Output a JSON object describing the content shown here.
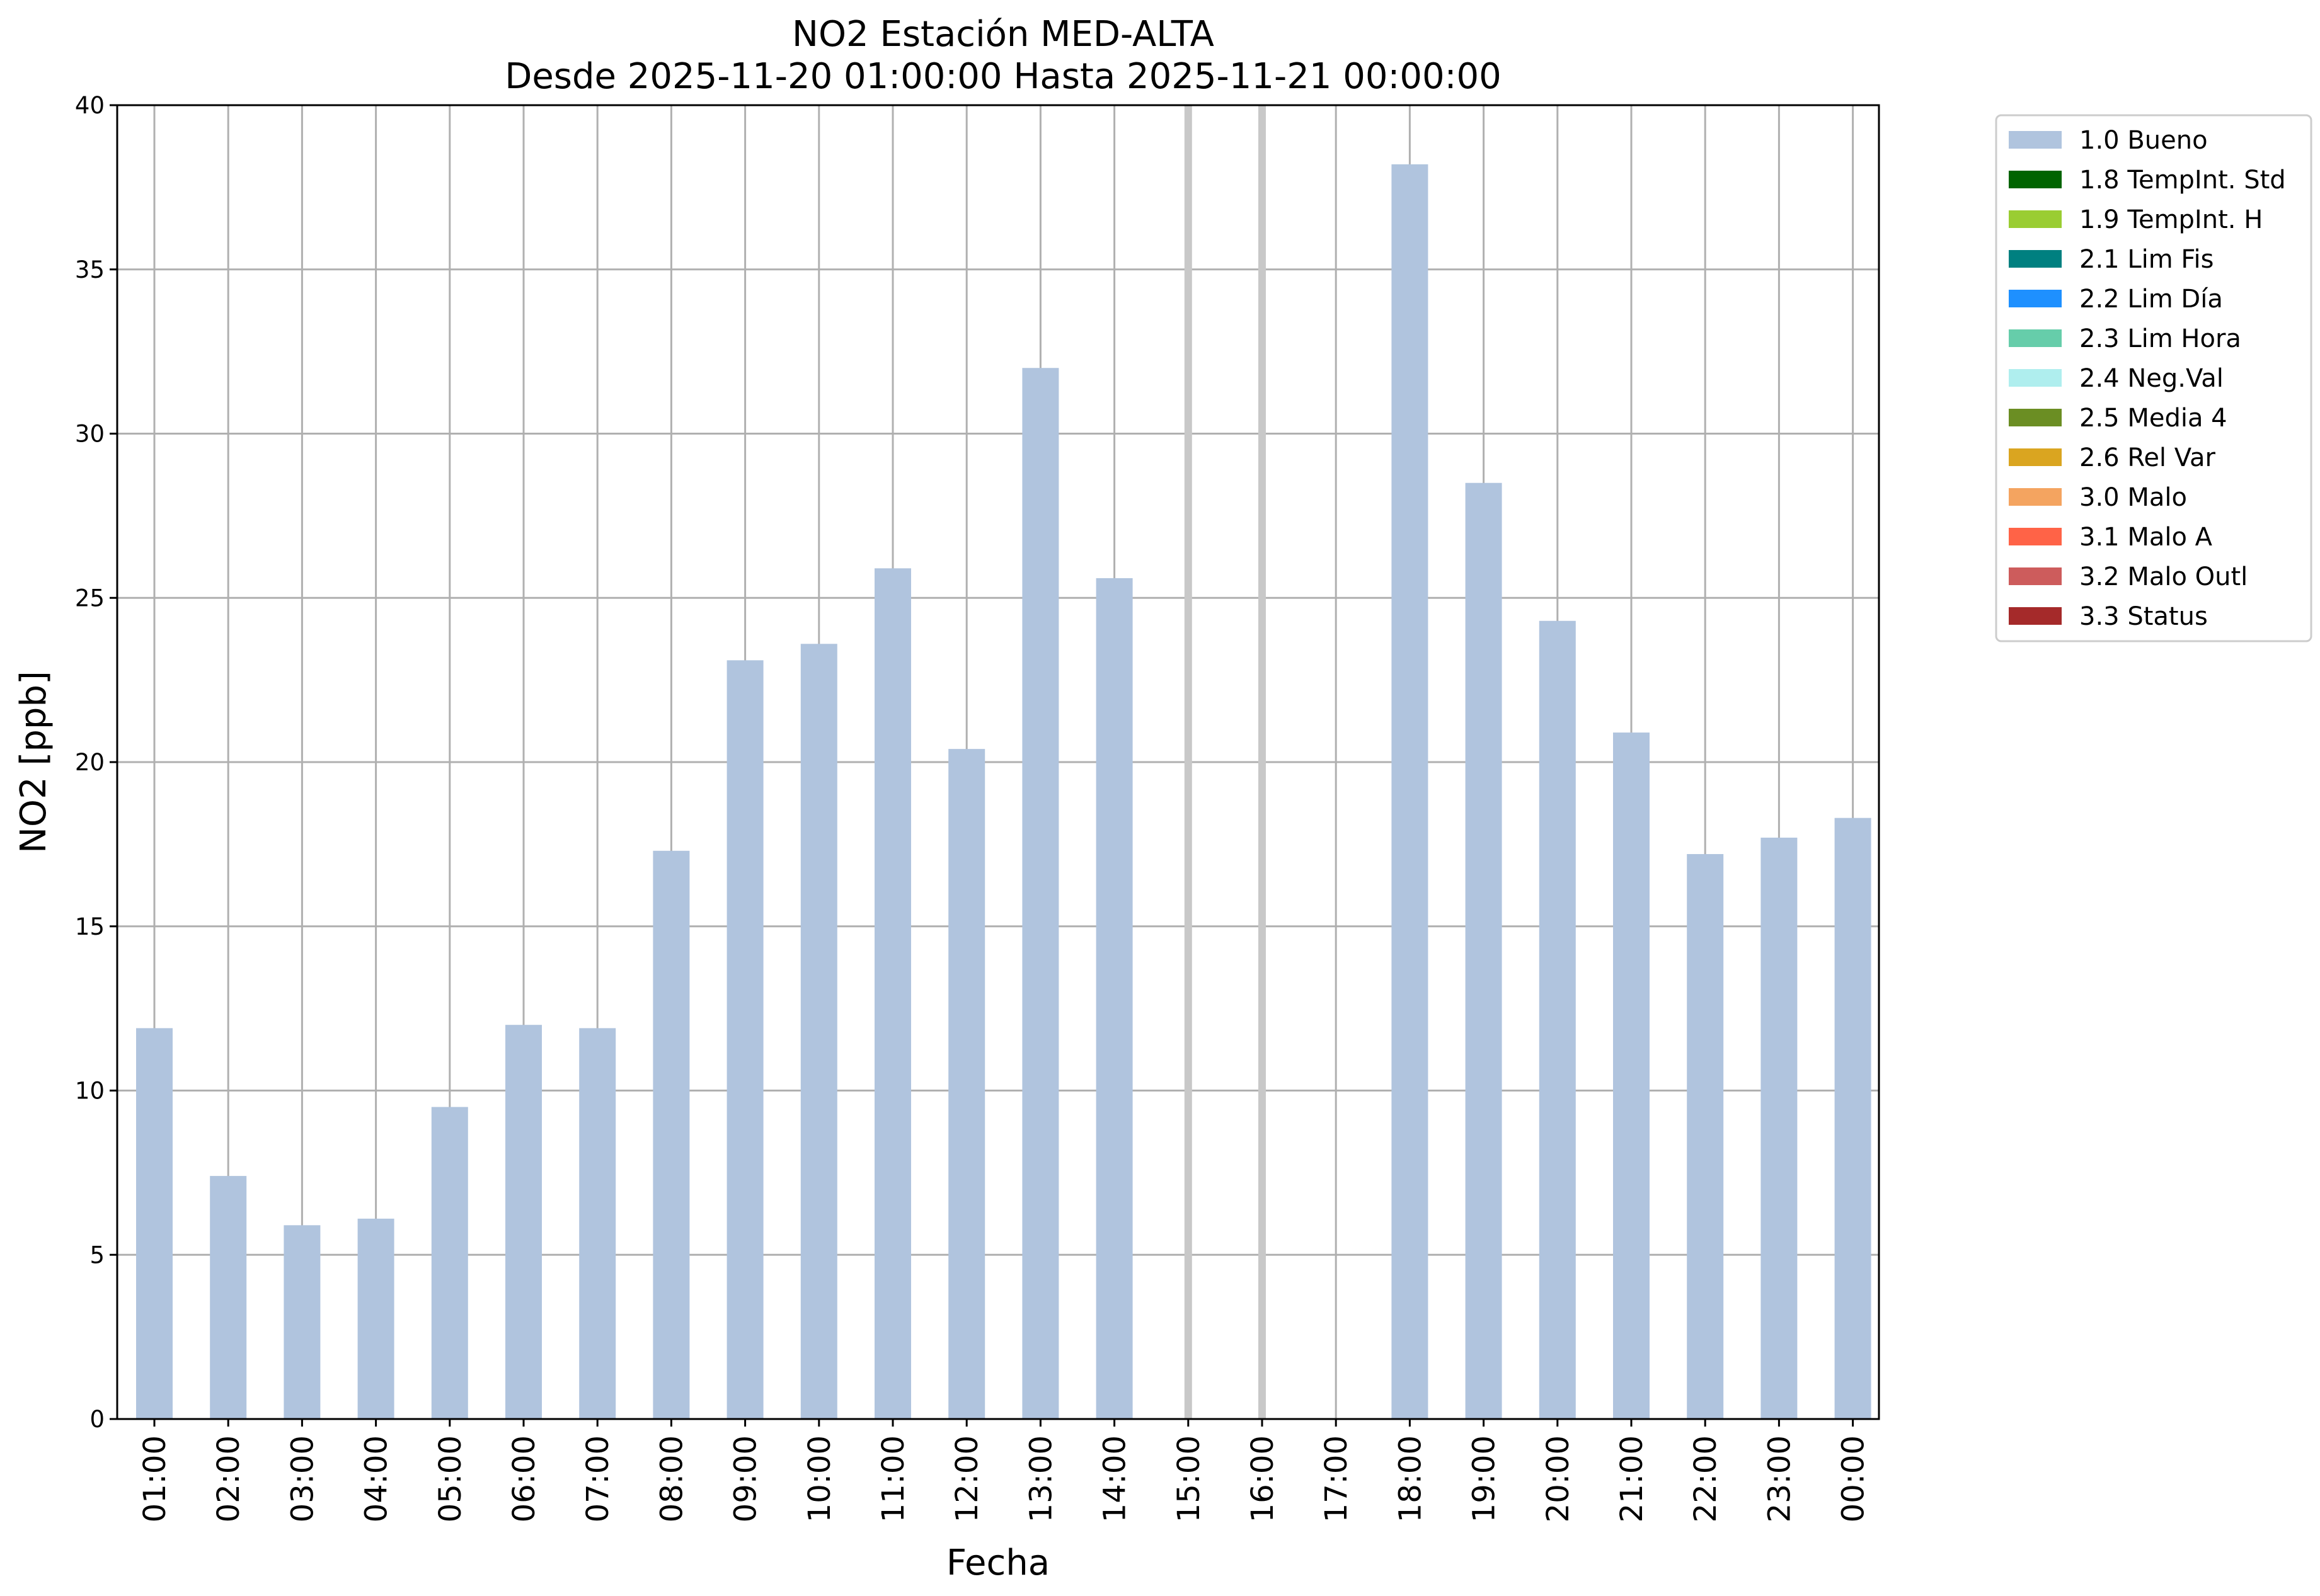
{
  "chart_data": {
    "type": "bar",
    "title": "NO2 Estación MED-ALTA",
    "subtitle": "Desde 2025-11-20 01:00:00 Hasta 2025-11-21 00:00:00",
    "xlabel": "Fecha",
    "ylabel": "NO2 [ppb]",
    "ylim": [
      0,
      40
    ],
    "yticks": [
      0,
      5,
      10,
      15,
      20,
      25,
      30,
      35,
      40
    ],
    "grid": true,
    "legend_position": "outside-top-right",
    "categories": [
      "01:00",
      "02:00",
      "03:00",
      "04:00",
      "05:00",
      "06:00",
      "07:00",
      "08:00",
      "09:00",
      "10:00",
      "11:00",
      "12:00",
      "13:00",
      "14:00",
      "15:00",
      "16:00",
      "17:00",
      "18:00",
      "19:00",
      "20:00",
      "21:00",
      "22:00",
      "23:00",
      "00:00"
    ],
    "series": [
      {
        "name": "1.0 Bueno",
        "color": "#b0c4de",
        "values": [
          11.9,
          7.4,
          5.9,
          6.1,
          9.5,
          12.0,
          11.9,
          17.3,
          23.1,
          23.6,
          25.9,
          20.4,
          32.0,
          25.6,
          null,
          null,
          null,
          38.2,
          28.5,
          24.3,
          20.9,
          17.2,
          17.7,
          18.3
        ]
      }
    ],
    "missing_markers": [
      "15:00",
      "16:00"
    ],
    "legend": [
      {
        "label": "1.0 Bueno",
        "color": "#b0c4de"
      },
      {
        "label": "1.8 TempInt. Std",
        "color": "#006400"
      },
      {
        "label": "1.9 TempInt. H",
        "color": "#9acd32"
      },
      {
        "label": "2.1 Lim Fis",
        "color": "#008080"
      },
      {
        "label": "2.2 Lim Día",
        "color": "#1e90ff"
      },
      {
        "label": "2.3 Lim Hora",
        "color": "#66cdaa"
      },
      {
        "label": "2.4 Neg.Val",
        "color": "#afeeee"
      },
      {
        "label": "2.5 Media 4",
        "color": "#6b8e23"
      },
      {
        "label": "2.6 Rel Var",
        "color": "#daa520"
      },
      {
        "label": "3.0 Malo",
        "color": "#f4a460"
      },
      {
        "label": "3.1 Malo A",
        "color": "#ff6347"
      },
      {
        "label": "3.2 Malo Outl",
        "color": "#cd5c5c"
      },
      {
        "label": "3.3 Status",
        "color": "#a52a2a"
      }
    ]
  }
}
